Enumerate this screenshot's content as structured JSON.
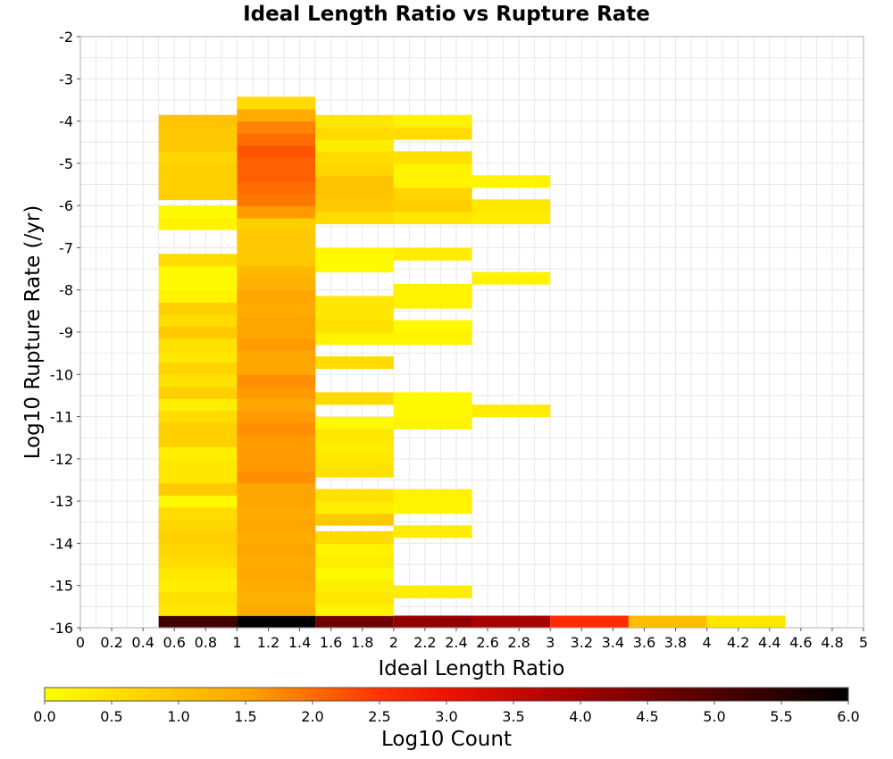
{
  "chart_data": {
    "type": "heatmap",
    "title": "Ideal Length Ratio vs Rupture Rate",
    "xlabel": "Ideal Length Ratio",
    "ylabel": "Log10 Rupture Rate (/yr)",
    "xlim": [
      0,
      5
    ],
    "ylim": [
      -16,
      -2
    ],
    "x_ticks": [
      0,
      0.2,
      0.4,
      0.6,
      0.8,
      1,
      1.2,
      1.4,
      1.6,
      1.8,
      2,
      2.2,
      2.4,
      2.6,
      2.8,
      3,
      3.2,
      3.4,
      3.6,
      3.8,
      4,
      4.2,
      4.4,
      4.6,
      4.8,
      5
    ],
    "y_ticks": [
      -2,
      -3,
      -4,
      -5,
      -6,
      -7,
      -8,
      -9,
      -10,
      -11,
      -12,
      -13,
      -14,
      -15,
      -16
    ],
    "x_bin_width": 0.5,
    "y_bin_height": 0.2857,
    "grid": true,
    "colorbar": {
      "label": "Log10 Count",
      "min": 0,
      "max": 6,
      "ticks": [
        "0.0",
        "0.5",
        "1.0",
        "1.5",
        "2.0",
        "2.5",
        "3.0",
        "3.5",
        "4.0",
        "4.5",
        "5.0",
        "5.5",
        "6.0"
      ],
      "stops": [
        {
          "v": 0.0,
          "color": "#ffff00"
        },
        {
          "v": 1.5,
          "color": "#ffa500"
        },
        {
          "v": 2.5,
          "color": "#ff3300"
        },
        {
          "v": 3.0,
          "color": "#ee1100"
        },
        {
          "v": 4.0,
          "color": "#a00000"
        },
        {
          "v": 5.0,
          "color": "#500000"
        },
        {
          "v": 6.0,
          "color": "#000000"
        }
      ]
    },
    "columns": [
      {
        "x0": 0.5,
        "cells": [
          {
            "y": -16.0,
            "v": 5.2
          },
          {
            "y": -15.71,
            "v": 0.4
          },
          {
            "y": -15.43,
            "v": 0.5
          },
          {
            "y": -15.14,
            "v": 0.3
          },
          {
            "y": -14.86,
            "v": 0.4
          },
          {
            "y": -14.57,
            "v": 0.6
          },
          {
            "y": -14.29,
            "v": 0.7
          },
          {
            "y": -14.0,
            "v": 0.8
          },
          {
            "y": -13.71,
            "v": 0.7
          },
          {
            "y": -13.43,
            "v": 0.6
          },
          {
            "y": -13.14,
            "v": 0.1
          },
          {
            "y": -12.86,
            "v": 0.9
          },
          {
            "y": -12.57,
            "v": 0.4
          },
          {
            "y": -12.29,
            "v": 0.4
          },
          {
            "y": -12.0,
            "v": 0.3
          },
          {
            "y": -11.71,
            "v": 0.8
          },
          {
            "y": -11.43,
            "v": 0.8
          },
          {
            "y": -11.14,
            "v": 0.6
          },
          {
            "y": -10.86,
            "v": 0.3
          },
          {
            "y": -10.57,
            "v": 0.8
          },
          {
            "y": -10.29,
            "v": 0.5
          },
          {
            "y": -10.0,
            "v": 0.7
          },
          {
            "y": -9.71,
            "v": 0.4
          },
          {
            "y": -9.43,
            "v": 0.5
          },
          {
            "y": -9.14,
            "v": 0.9
          },
          {
            "y": -8.86,
            "v": 0.6
          },
          {
            "y": -8.57,
            "v": 0.8
          },
          {
            "y": -8.29,
            "v": 0.2
          },
          {
            "y": -8.0,
            "v": 0.1
          },
          {
            "y": -7.71,
            "v": 0.1
          },
          {
            "y": -7.43,
            "v": 0.6
          },
          {
            "y": -6.57,
            "v": 0.2
          },
          {
            "y": -6.29,
            "v": 0.1
          },
          {
            "y": -5.86,
            "v": 0.8
          },
          {
            "y": -5.57,
            "v": 0.8
          },
          {
            "y": -5.29,
            "v": 0.8
          },
          {
            "y": -5.0,
            "v": 0.7
          },
          {
            "y": -4.71,
            "v": 0.9
          },
          {
            "y": -4.43,
            "v": 0.9
          },
          {
            "y": -4.14,
            "v": 1.0
          }
        ]
      },
      {
        "x0": 1.0,
        "cells": [
          {
            "y": -16.0,
            "v": 6.0
          },
          {
            "y": -15.71,
            "v": 1.4
          },
          {
            "y": -15.43,
            "v": 1.3
          },
          {
            "y": -15.14,
            "v": 1.4
          },
          {
            "y": -14.86,
            "v": 1.5
          },
          {
            "y": -14.57,
            "v": 1.4
          },
          {
            "y": -14.29,
            "v": 1.5
          },
          {
            "y": -14.0,
            "v": 1.4
          },
          {
            "y": -13.71,
            "v": 1.5
          },
          {
            "y": -13.43,
            "v": 1.4
          },
          {
            "y": -13.14,
            "v": 1.5
          },
          {
            "y": -12.86,
            "v": 1.5
          },
          {
            "y": -12.57,
            "v": 1.7
          },
          {
            "y": -12.29,
            "v": 1.6
          },
          {
            "y": -12.0,
            "v": 1.6
          },
          {
            "y": -11.71,
            "v": 1.6
          },
          {
            "y": -11.43,
            "v": 1.7
          },
          {
            "y": -11.14,
            "v": 1.6
          },
          {
            "y": -10.86,
            "v": 1.5
          },
          {
            "y": -10.57,
            "v": 1.6
          },
          {
            "y": -10.29,
            "v": 1.7
          },
          {
            "y": -10.0,
            "v": 1.5
          },
          {
            "y": -9.71,
            "v": 1.5
          },
          {
            "y": -9.43,
            "v": 1.6
          },
          {
            "y": -9.14,
            "v": 1.5
          },
          {
            "y": -8.86,
            "v": 1.5
          },
          {
            "y": -8.57,
            "v": 1.4
          },
          {
            "y": -8.29,
            "v": 1.5
          },
          {
            "y": -8.0,
            "v": 1.3
          },
          {
            "y": -7.71,
            "v": 1.2
          },
          {
            "y": -7.43,
            "v": 0.9
          },
          {
            "y": -7.14,
            "v": 0.9
          },
          {
            "y": -6.86,
            "v": 0.9
          },
          {
            "y": -6.57,
            "v": 0.8
          },
          {
            "y": -6.29,
            "v": 1.6
          },
          {
            "y": -6.0,
            "v": 1.9
          },
          {
            "y": -5.71,
            "v": 2.0
          },
          {
            "y": -5.43,
            "v": 2.1
          },
          {
            "y": -5.14,
            "v": 2.1
          },
          {
            "y": -4.86,
            "v": 2.2
          },
          {
            "y": -4.57,
            "v": 2.0
          },
          {
            "y": -4.29,
            "v": 1.8
          },
          {
            "y": -4.0,
            "v": 1.4
          },
          {
            "y": -3.71,
            "v": 0.6
          }
        ]
      },
      {
        "x0": 1.5,
        "cells": [
          {
            "y": -16.0,
            "v": 4.6
          },
          {
            "y": -15.71,
            "v": 0.2
          },
          {
            "y": -15.43,
            "v": 0.4
          },
          {
            "y": -15.14,
            "v": 0.3
          },
          {
            "y": -14.86,
            "v": 0.1
          },
          {
            "y": -14.57,
            "v": 0.3
          },
          {
            "y": -14.29,
            "v": 0.2
          },
          {
            "y": -14.0,
            "v": 0.6
          },
          {
            "y": -13.57,
            "v": 0.9
          },
          {
            "y": -13.29,
            "v": 0.3
          },
          {
            "y": -13.0,
            "v": 0.5
          },
          {
            "y": -12.43,
            "v": 0.5
          },
          {
            "y": -12.14,
            "v": 0.4
          },
          {
            "y": -11.86,
            "v": 0.3
          },
          {
            "y": -11.57,
            "v": 0.4
          },
          {
            "y": -11.29,
            "v": 0.1
          },
          {
            "y": -10.71,
            "v": 0.6
          },
          {
            "y": -9.86,
            "v": 0.6
          },
          {
            "y": -9.29,
            "v": 0.2
          },
          {
            "y": -9.0,
            "v": 0.5
          },
          {
            "y": -8.71,
            "v": 0.4
          },
          {
            "y": -8.43,
            "v": 0.4
          },
          {
            "y": -7.57,
            "v": 0.1
          },
          {
            "y": -7.29,
            "v": 0.1
          },
          {
            "y": -6.43,
            "v": 0.6
          },
          {
            "y": -6.14,
            "v": 0.9
          },
          {
            "y": -5.86,
            "v": 1.0
          },
          {
            "y": -5.57,
            "v": 1.0
          },
          {
            "y": -5.29,
            "v": 0.7
          },
          {
            "y": -5.0,
            "v": 0.6
          },
          {
            "y": -4.71,
            "v": 0.3
          },
          {
            "y": -4.43,
            "v": 0.6
          },
          {
            "y": -4.14,
            "v": 0.4
          }
        ]
      },
      {
        "x0": 2.0,
        "cells": [
          {
            "y": -16.0,
            "v": 4.2
          },
          {
            "y": -15.29,
            "v": 0.3
          },
          {
            "y": -13.86,
            "v": 0.3
          },
          {
            "y": -13.29,
            "v": 0.2
          },
          {
            "y": -13.0,
            "v": 0.2
          },
          {
            "y": -11.29,
            "v": 0.2
          },
          {
            "y": -11.0,
            "v": 0.1
          },
          {
            "y": -10.71,
            "v": 0.1
          },
          {
            "y": -9.29,
            "v": 0.2
          },
          {
            "y": -9.0,
            "v": 0.1
          },
          {
            "y": -8.43,
            "v": 0.2
          },
          {
            "y": -8.14,
            "v": 0.2
          },
          {
            "y": -7.29,
            "v": 0.3
          },
          {
            "y": -6.43,
            "v": 0.4
          },
          {
            "y": -6.14,
            "v": 0.8
          },
          {
            "y": -5.86,
            "v": 0.7
          },
          {
            "y": -5.57,
            "v": 0.2
          },
          {
            "y": -5.29,
            "v": 0.2
          },
          {
            "y": -5.0,
            "v": 0.5
          },
          {
            "y": -4.43,
            "v": 0.6
          },
          {
            "y": -4.14,
            "v": 0.2
          }
        ]
      },
      {
        "x0": 2.5,
        "cells": [
          {
            "y": -16.0,
            "v": 3.9
          },
          {
            "y": -11.0,
            "v": 0.3
          },
          {
            "y": -7.86,
            "v": 0.2
          },
          {
            "y": -6.43,
            "v": 0.3
          },
          {
            "y": -6.14,
            "v": 0.4
          },
          {
            "y": -5.57,
            "v": 0.2
          }
        ]
      },
      {
        "x0": 3.0,
        "cells": [
          {
            "y": -16.0,
            "v": 2.6
          }
        ]
      },
      {
        "x0": 3.5,
        "cells": [
          {
            "y": -16.0,
            "v": 1.1
          }
        ]
      },
      {
        "x0": 4.0,
        "cells": [
          {
            "y": -16.0,
            "v": 0.4
          }
        ]
      }
    ]
  }
}
